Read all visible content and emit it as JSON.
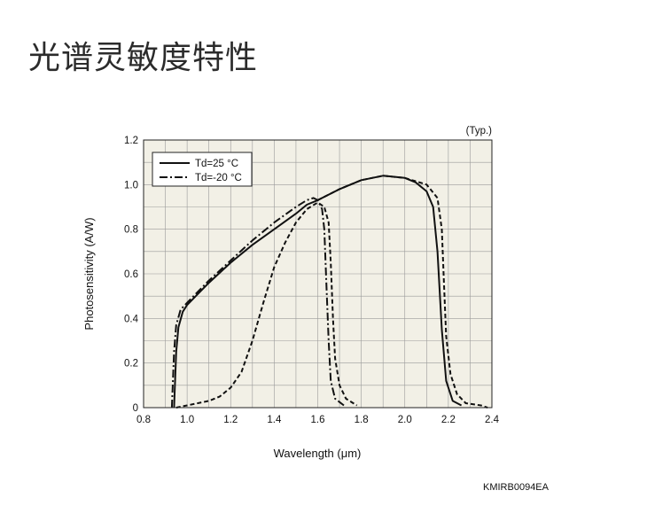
{
  "page": {
    "title": "光谱灵敏度特性"
  },
  "chart_data": {
    "type": "line",
    "title": "",
    "xlabel": "Wavelength (μm)",
    "ylabel": "Photosensitivity (A/W)",
    "xlim": [
      0.8,
      2.4
    ],
    "ylim": [
      0,
      1.2
    ],
    "x_ticks": [
      "0.8",
      "1.0",
      "1.2",
      "1.4",
      "1.6",
      "1.8",
      "2.0",
      "2.2",
      "2.4"
    ],
    "y_ticks": [
      "0",
      "0.2",
      "0.4",
      "0.6",
      "0.8",
      "1.0",
      "1.2"
    ],
    "grid": true,
    "legend_position": "top-left",
    "annotation": "(Typ.)",
    "code": "KMIRB0094EA",
    "series": [
      {
        "name": "Td=25 °C",
        "style": "solid",
        "points": [
          [
            0.94,
            0.0
          ],
          [
            0.95,
            0.25
          ],
          [
            0.96,
            0.36
          ],
          [
            0.98,
            0.43
          ],
          [
            1.0,
            0.46
          ],
          [
            1.05,
            0.51
          ],
          [
            1.1,
            0.56
          ],
          [
            1.2,
            0.65
          ],
          [
            1.3,
            0.73
          ],
          [
            1.4,
            0.8
          ],
          [
            1.5,
            0.87
          ],
          [
            1.55,
            0.91
          ],
          [
            1.6,
            0.93
          ],
          [
            1.7,
            0.98
          ],
          [
            1.8,
            1.02
          ],
          [
            1.9,
            1.04
          ],
          [
            2.0,
            1.03
          ],
          [
            2.05,
            1.01
          ],
          [
            2.1,
            0.97
          ],
          [
            2.13,
            0.9
          ],
          [
            2.15,
            0.7
          ],
          [
            2.17,
            0.35
          ],
          [
            2.19,
            0.12
          ],
          [
            2.22,
            0.03
          ],
          [
            2.26,
            0.01
          ]
        ]
      },
      {
        "name": "Td=-20 °C",
        "style": "dash-dot",
        "points": [
          [
            0.93,
            0.0
          ],
          [
            0.94,
            0.25
          ],
          [
            0.95,
            0.37
          ],
          [
            0.97,
            0.44
          ],
          [
            1.0,
            0.47
          ],
          [
            1.05,
            0.52
          ],
          [
            1.1,
            0.57
          ],
          [
            1.2,
            0.66
          ],
          [
            1.3,
            0.75
          ],
          [
            1.4,
            0.83
          ],
          [
            1.5,
            0.9
          ],
          [
            1.55,
            0.93
          ],
          [
            1.58,
            0.94
          ],
          [
            1.6,
            0.93
          ],
          [
            1.62,
            0.89
          ],
          [
            1.63,
            0.8
          ],
          [
            1.64,
            0.55
          ],
          [
            1.65,
            0.3
          ],
          [
            1.66,
            0.12
          ],
          [
            1.68,
            0.04
          ],
          [
            1.72,
            0.01
          ]
        ]
      },
      {
        "name": "",
        "style": "dashed",
        "points": [
          [
            0.95,
            0.0
          ],
          [
            1.0,
            0.01
          ],
          [
            1.1,
            0.03
          ],
          [
            1.15,
            0.05
          ],
          [
            1.2,
            0.09
          ],
          [
            1.25,
            0.16
          ],
          [
            1.3,
            0.3
          ],
          [
            1.35,
            0.47
          ],
          [
            1.4,
            0.63
          ],
          [
            1.45,
            0.74
          ],
          [
            1.5,
            0.83
          ],
          [
            1.55,
            0.89
          ],
          [
            1.6,
            0.92
          ],
          [
            1.63,
            0.9
          ],
          [
            1.65,
            0.83
          ],
          [
            1.66,
            0.65
          ],
          [
            1.67,
            0.4
          ],
          [
            1.68,
            0.22
          ],
          [
            1.7,
            0.1
          ],
          [
            1.73,
            0.04
          ],
          [
            1.78,
            0.01
          ]
        ]
      },
      {
        "name": "",
        "style": "dashed",
        "points": [
          [
            1.6,
            0.93
          ],
          [
            1.7,
            0.98
          ],
          [
            1.8,
            1.02
          ],
          [
            1.9,
            1.04
          ],
          [
            2.0,
            1.03
          ],
          [
            2.1,
            1.0
          ],
          [
            2.15,
            0.94
          ],
          [
            2.17,
            0.8
          ],
          [
            2.18,
            0.55
          ],
          [
            2.19,
            0.32
          ],
          [
            2.21,
            0.15
          ],
          [
            2.24,
            0.06
          ],
          [
            2.28,
            0.02
          ],
          [
            2.35,
            0.01
          ],
          [
            2.38,
            0.0
          ]
        ]
      }
    ]
  }
}
